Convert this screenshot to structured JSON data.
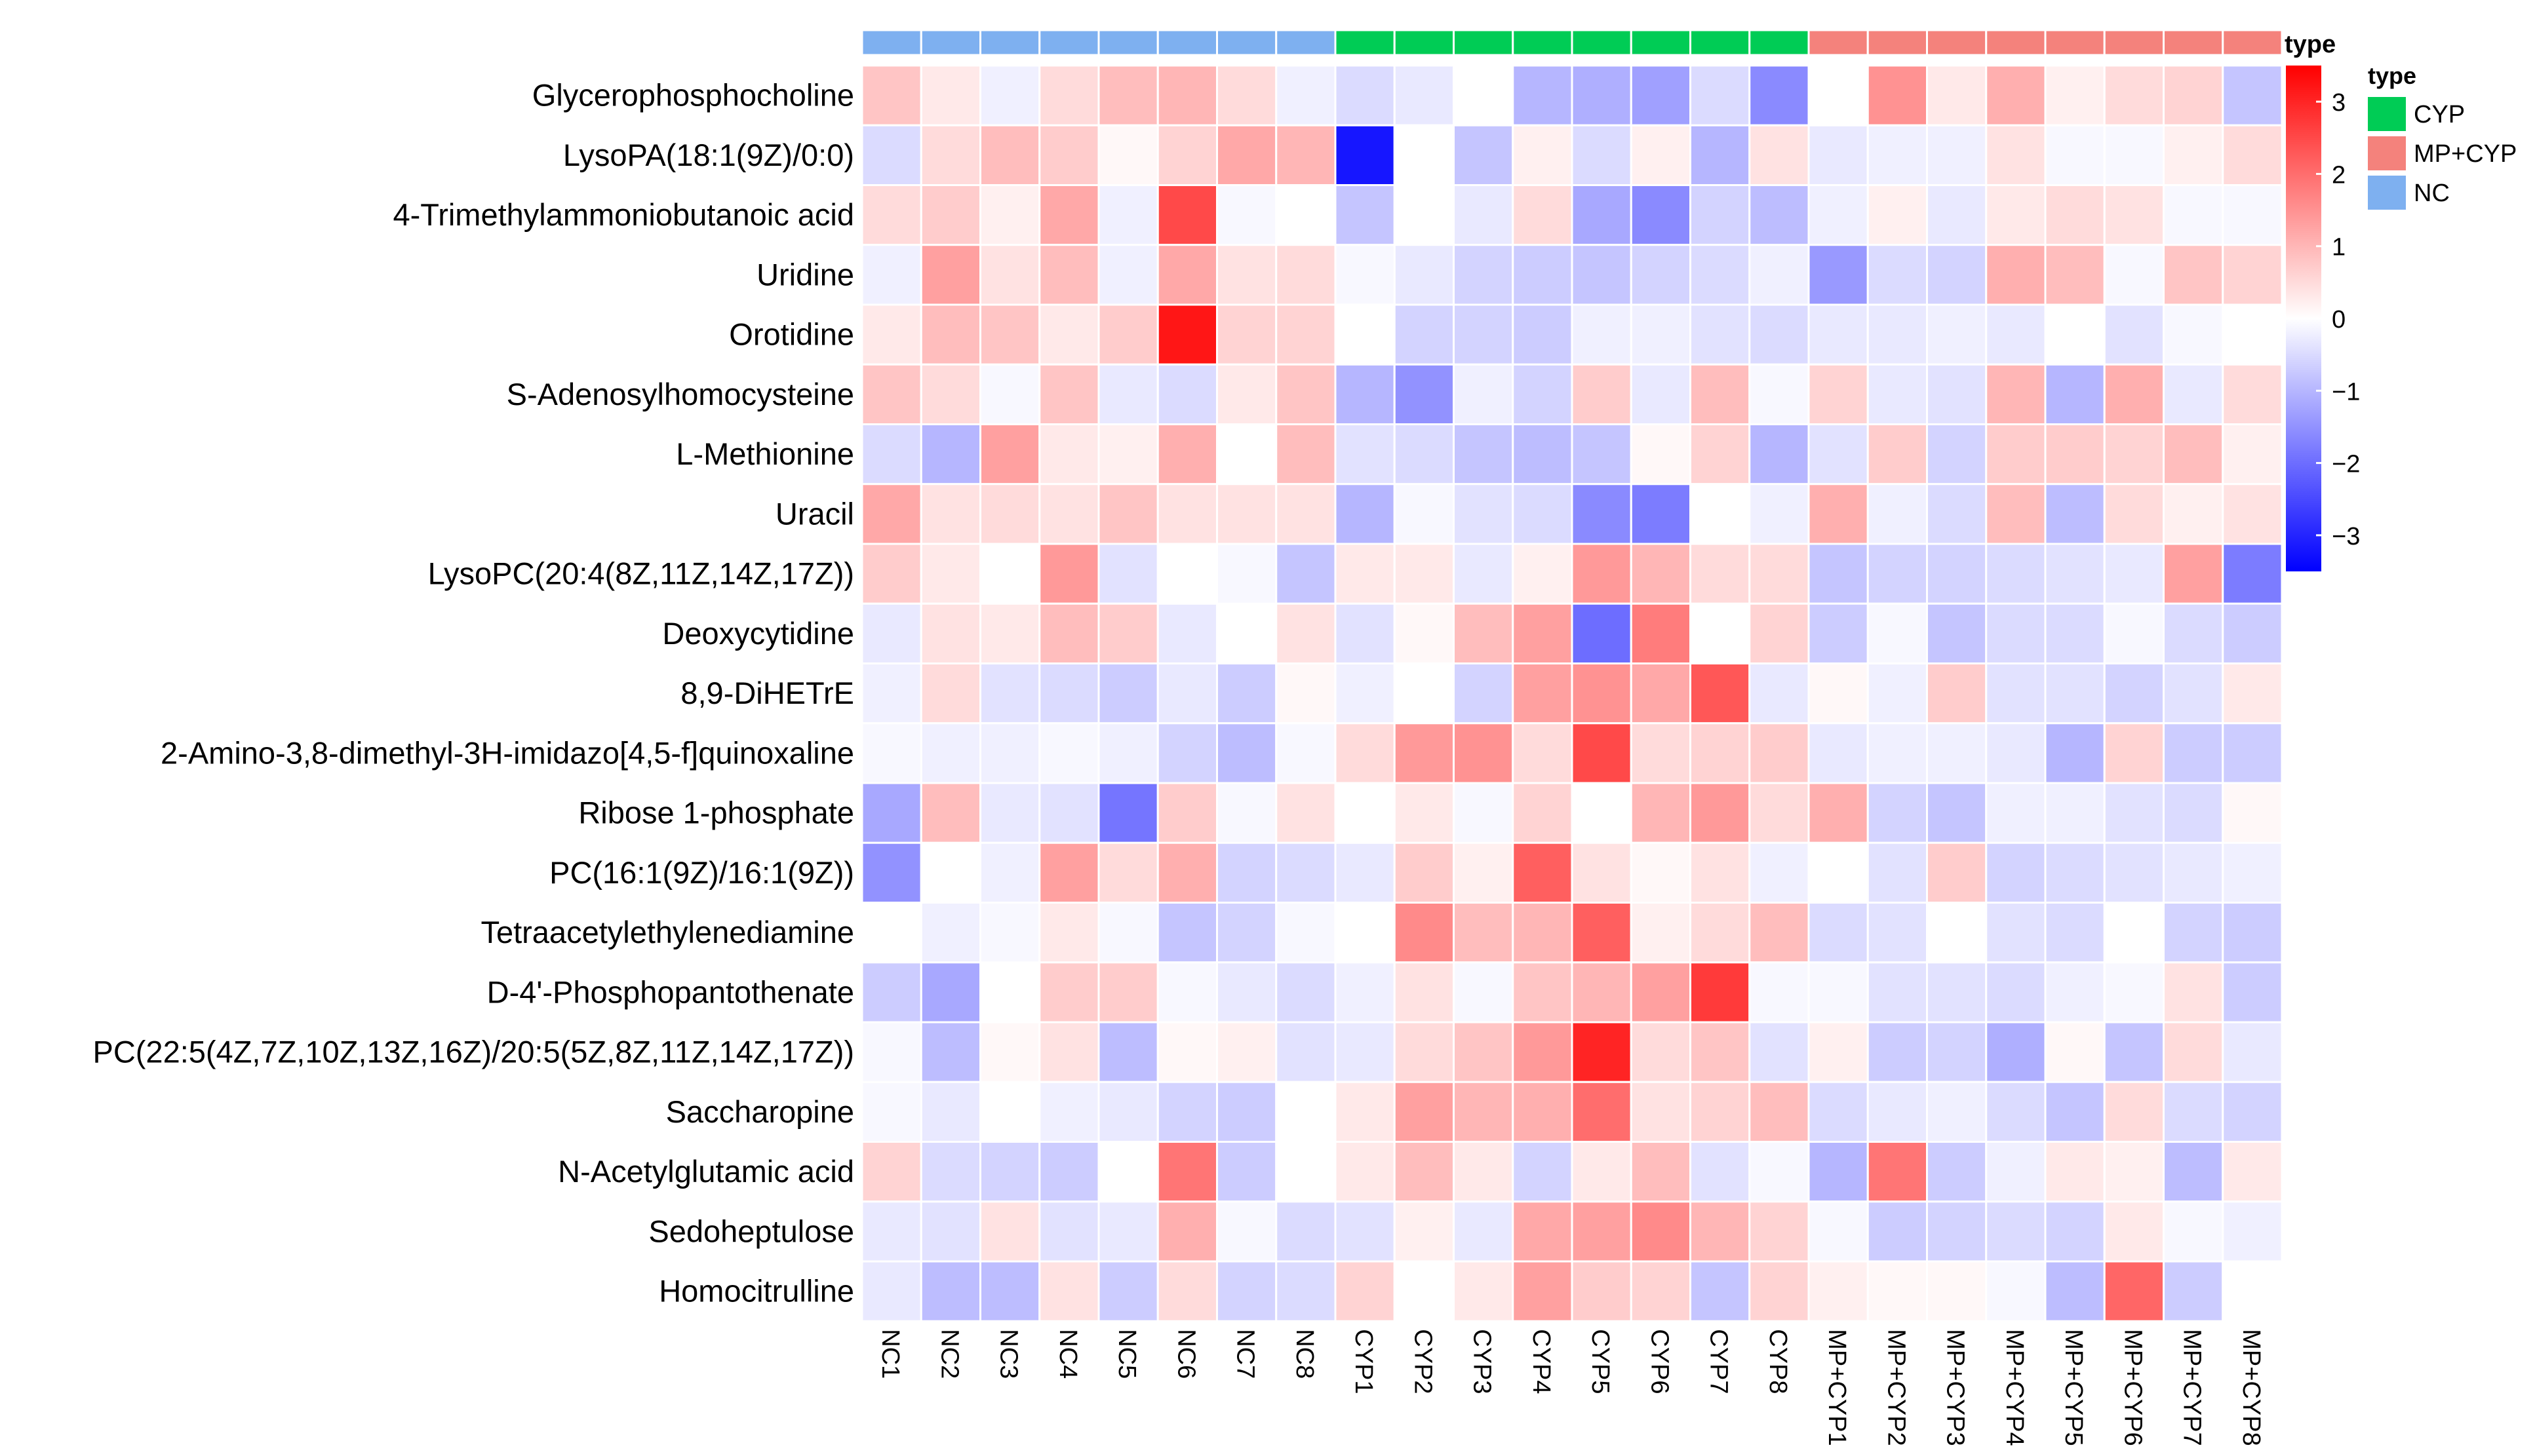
{
  "chart_data": {
    "type": "heatmap",
    "x": [
      "NC1",
      "NC2",
      "NC3",
      "NC4",
      "NC5",
      "NC6",
      "NC7",
      "NC8",
      "CYP1",
      "CYP2",
      "CYP3",
      "CYP4",
      "CYP5",
      "CYP6",
      "CYP7",
      "CYP8",
      "MP+CYP1",
      "MP+CYP2",
      "MP+CYP3",
      "MP+CYP4",
      "MP+CYP5",
      "MP+CYP6",
      "MP+CYP7",
      "MP+CYP8"
    ],
    "y": [
      "Glycerophosphocholine",
      "LysoPA(18:1(9Z)/0:0)",
      "4-Trimethylammoniobutanoic acid",
      "Uridine",
      "Orotidine",
      "S-Adenosylhomocysteine",
      "L-Methionine",
      "Uracil",
      "LysoPC(20:4(8Z,11Z,14Z,17Z))",
      "Deoxycytidine",
      "8,9-DiHETrE",
      "2-Amino-3,8-dimethyl-3H-imidazo[4,5-f]quinoxaline",
      "Ribose 1-phosphate",
      "PC(16:1(9Z)/16:1(9Z))",
      "Tetraacetylethylenediamine",
      "D-4'-Phosphopantothenate",
      "PC(22:5(4Z,7Z,10Z,13Z,16Z)/20:5(5Z,8Z,11Z,14Z,17Z))",
      "Saccharopine",
      "N-Acetylglutamic acid",
      "Sedoheptulose",
      "Homocitrulline"
    ],
    "groups": [
      "NC",
      "NC",
      "NC",
      "NC",
      "NC",
      "NC",
      "NC",
      "NC",
      "CYP",
      "CYP",
      "CYP",
      "CYP",
      "CYP",
      "CYP",
      "CYP",
      "CYP",
      "MP+CYP",
      "MP+CYP",
      "MP+CYP",
      "MP+CYP",
      "MP+CYP",
      "MP+CYP",
      "MP+CYP",
      "MP+CYP"
    ],
    "values": [
      [
        0.8,
        0.3,
        -0.2,
        0.5,
        0.9,
        1.0,
        0.5,
        -0.2,
        -0.5,
        -0.3,
        0.0,
        -1.0,
        -1.1,
        -1.3,
        -0.5,
        -1.6,
        0.0,
        1.5,
        0.3,
        1.1,
        0.2,
        0.5,
        0.6,
        -0.8
      ],
      [
        -0.5,
        0.5,
        0.9,
        0.7,
        0.1,
        0.6,
        1.2,
        1.0,
        -3.2,
        0.0,
        -0.8,
        0.2,
        -0.5,
        0.2,
        -1.0,
        0.4,
        -0.3,
        -0.2,
        -0.2,
        0.4,
        -0.1,
        -0.1,
        0.2,
        0.5
      ],
      [
        0.5,
        0.7,
        0.2,
        1.2,
        -0.2,
        2.5,
        -0.1,
        0.0,
        -0.8,
        0.0,
        -0.3,
        0.5,
        -1.2,
        -1.6,
        -0.6,
        -0.9,
        -0.2,
        0.2,
        -0.3,
        0.3,
        0.5,
        0.4,
        -0.1,
        -0.1
      ],
      [
        -0.2,
        1.3,
        0.4,
        0.9,
        -0.2,
        1.2,
        0.4,
        0.5,
        -0.1,
        -0.3,
        -0.6,
        -0.7,
        -0.8,
        -0.6,
        -0.5,
        -0.2,
        -1.4,
        -0.5,
        -0.6,
        1.1,
        0.9,
        -0.1,
        0.8,
        0.6
      ],
      [
        0.3,
        0.9,
        0.8,
        0.3,
        0.7,
        3.2,
        0.6,
        0.6,
        0.0,
        -0.6,
        -0.6,
        -0.7,
        -0.2,
        -0.2,
        -0.4,
        -0.5,
        -0.3,
        -0.3,
        -0.2,
        -0.3,
        0.0,
        -0.4,
        -0.1,
        0.0
      ],
      [
        0.8,
        0.5,
        -0.1,
        0.8,
        -0.3,
        -0.5,
        0.3,
        0.8,
        -1.0,
        -1.5,
        -0.2,
        -0.6,
        0.7,
        -0.3,
        0.9,
        -0.1,
        0.6,
        -0.3,
        -0.4,
        1.0,
        -1.0,
        1.1,
        -0.3,
        0.5
      ],
      [
        -0.5,
        -1.0,
        1.3,
        0.3,
        0.2,
        1.1,
        0.0,
        0.9,
        -0.4,
        -0.5,
        -0.8,
        -0.9,
        -0.8,
        0.1,
        0.6,
        -1.0,
        -0.4,
        0.7,
        -0.6,
        0.7,
        0.7,
        0.6,
        0.9,
        0.2
      ],
      [
        1.2,
        0.4,
        0.5,
        0.4,
        0.8,
        0.4,
        0.4,
        0.4,
        -1.0,
        -0.1,
        -0.4,
        -0.5,
        -1.6,
        -1.8,
        0.0,
        -0.2,
        1.1,
        -0.2,
        -0.5,
        0.9,
        -0.9,
        0.5,
        0.2,
        0.4
      ],
      [
        0.7,
        0.3,
        0.0,
        1.4,
        -0.4,
        0.0,
        -0.1,
        -0.8,
        0.3,
        0.3,
        -0.3,
        0.2,
        1.4,
        1.0,
        0.5,
        0.5,
        -0.8,
        -0.6,
        -0.6,
        -0.5,
        -0.4,
        -0.3,
        1.3,
        -1.8
      ],
      [
        -0.3,
        0.4,
        0.3,
        0.9,
        0.7,
        -0.3,
        0.0,
        0.4,
        -0.4,
        0.1,
        0.9,
        1.3,
        -2.0,
        1.8,
        0.0,
        0.6,
        -0.7,
        -0.1,
        -0.8,
        -0.5,
        -0.5,
        -0.1,
        -0.5,
        -0.7
      ],
      [
        -0.2,
        0.5,
        -0.4,
        -0.5,
        -0.7,
        -0.3,
        -0.7,
        0.1,
        -0.2,
        0.0,
        -0.6,
        1.3,
        1.5,
        1.2,
        2.3,
        -0.3,
        0.1,
        -0.2,
        0.7,
        -0.4,
        -0.4,
        -0.6,
        -0.4,
        0.3
      ],
      [
        -0.1,
        -0.2,
        -0.2,
        -0.1,
        -0.2,
        -0.6,
        -0.9,
        -0.1,
        0.5,
        1.4,
        1.5,
        0.5,
        2.5,
        0.5,
        0.6,
        0.7,
        -0.3,
        -0.2,
        -0.2,
        -0.3,
        -1.0,
        0.6,
        -0.7,
        -0.7
      ],
      [
        -1.2,
        0.9,
        -0.3,
        -0.4,
        -1.9,
        0.7,
        -0.1,
        0.4,
        0.0,
        0.3,
        -0.1,
        0.6,
        0.0,
        1.0,
        1.4,
        0.5,
        1.1,
        -0.6,
        -0.8,
        -0.2,
        -0.2,
        -0.4,
        -0.5,
        0.1
      ],
      [
        -1.5,
        0.0,
        -0.2,
        1.3,
        0.5,
        1.1,
        -0.6,
        -0.5,
        -0.3,
        0.7,
        0.2,
        2.2,
        0.4,
        0.1,
        0.4,
        -0.2,
        0.0,
        -0.4,
        0.7,
        -0.6,
        -0.5,
        -0.4,
        -0.3,
        -0.2
      ],
      [
        0.0,
        -0.2,
        -0.1,
        0.3,
        -0.1,
        -0.8,
        -0.6,
        -0.1,
        0.0,
        1.6,
        0.9,
        1.0,
        2.2,
        0.2,
        0.5,
        0.9,
        -0.5,
        -0.4,
        0.0,
        -0.4,
        -0.5,
        0.0,
        -0.6,
        -0.7
      ],
      [
        -0.7,
        -1.2,
        0.0,
        0.7,
        0.7,
        -0.1,
        -0.3,
        -0.5,
        -0.2,
        0.4,
        -0.1,
        0.8,
        1.0,
        1.3,
        2.7,
        -0.1,
        -0.1,
        -0.4,
        -0.4,
        -0.5,
        -0.2,
        -0.1,
        0.4,
        -0.7
      ],
      [
        -0.1,
        -0.9,
        0.1,
        0.4,
        -0.9,
        0.1,
        0.2,
        -0.4,
        -0.3,
        0.5,
        0.8,
        1.4,
        3.0,
        0.5,
        0.8,
        -0.4,
        0.2,
        -0.7,
        -0.6,
        -1.1,
        0.1,
        -0.8,
        0.5,
        -0.3
      ],
      [
        -0.1,
        -0.3,
        0.0,
        -0.2,
        -0.3,
        -0.6,
        -0.7,
        0.0,
        0.3,
        1.3,
        1.0,
        1.1,
        2.0,
        0.4,
        0.6,
        0.9,
        -0.5,
        -0.3,
        -0.2,
        -0.5,
        -0.8,
        0.5,
        -0.5,
        -0.6
      ],
      [
        0.6,
        -0.5,
        -0.6,
        -0.7,
        0.0,
        1.9,
        -0.7,
        0.0,
        0.3,
        0.9,
        0.3,
        -0.6,
        0.3,
        0.9,
        -0.4,
        -0.1,
        -1.0,
        1.9,
        -0.7,
        -0.2,
        0.3,
        0.2,
        -0.9,
        0.3
      ],
      [
        -0.3,
        -0.4,
        0.4,
        -0.4,
        -0.3,
        1.1,
        -0.1,
        -0.5,
        -0.4,
        0.2,
        -0.3,
        1.2,
        1.3,
        1.6,
        1.0,
        0.6,
        -0.1,
        -0.7,
        -0.6,
        -0.5,
        -0.6,
        0.3,
        -0.1,
        -0.2
      ],
      [
        -0.3,
        -0.9,
        -0.9,
        0.4,
        -0.7,
        0.5,
        -0.6,
        -0.5,
        0.6,
        0.0,
        0.3,
        1.3,
        0.7,
        0.6,
        -0.8,
        0.6,
        0.2,
        0.1,
        0.1,
        -0.1,
        -0.9,
        2.1,
        -0.7,
        0.0
      ]
    ],
    "color_scale": {
      "min": -3.5,
      "max": 3.5,
      "low_color": "#0000ff",
      "mid_color": "#ffffff",
      "high_color": "#ff0000",
      "ticks": [
        3,
        2,
        1,
        0,
        -1,
        -2,
        -3
      ],
      "title": "type"
    },
    "annotation": {
      "title": "type",
      "legend_title": "type",
      "categories": [
        {
          "name": "CYP",
          "color": "#00cc55"
        },
        {
          "name": "MP+CYP",
          "color": "#f4827c"
        },
        {
          "name": "NC",
          "color": "#7eb0f0"
        }
      ]
    },
    "grid": true,
    "legend_position": "right"
  }
}
